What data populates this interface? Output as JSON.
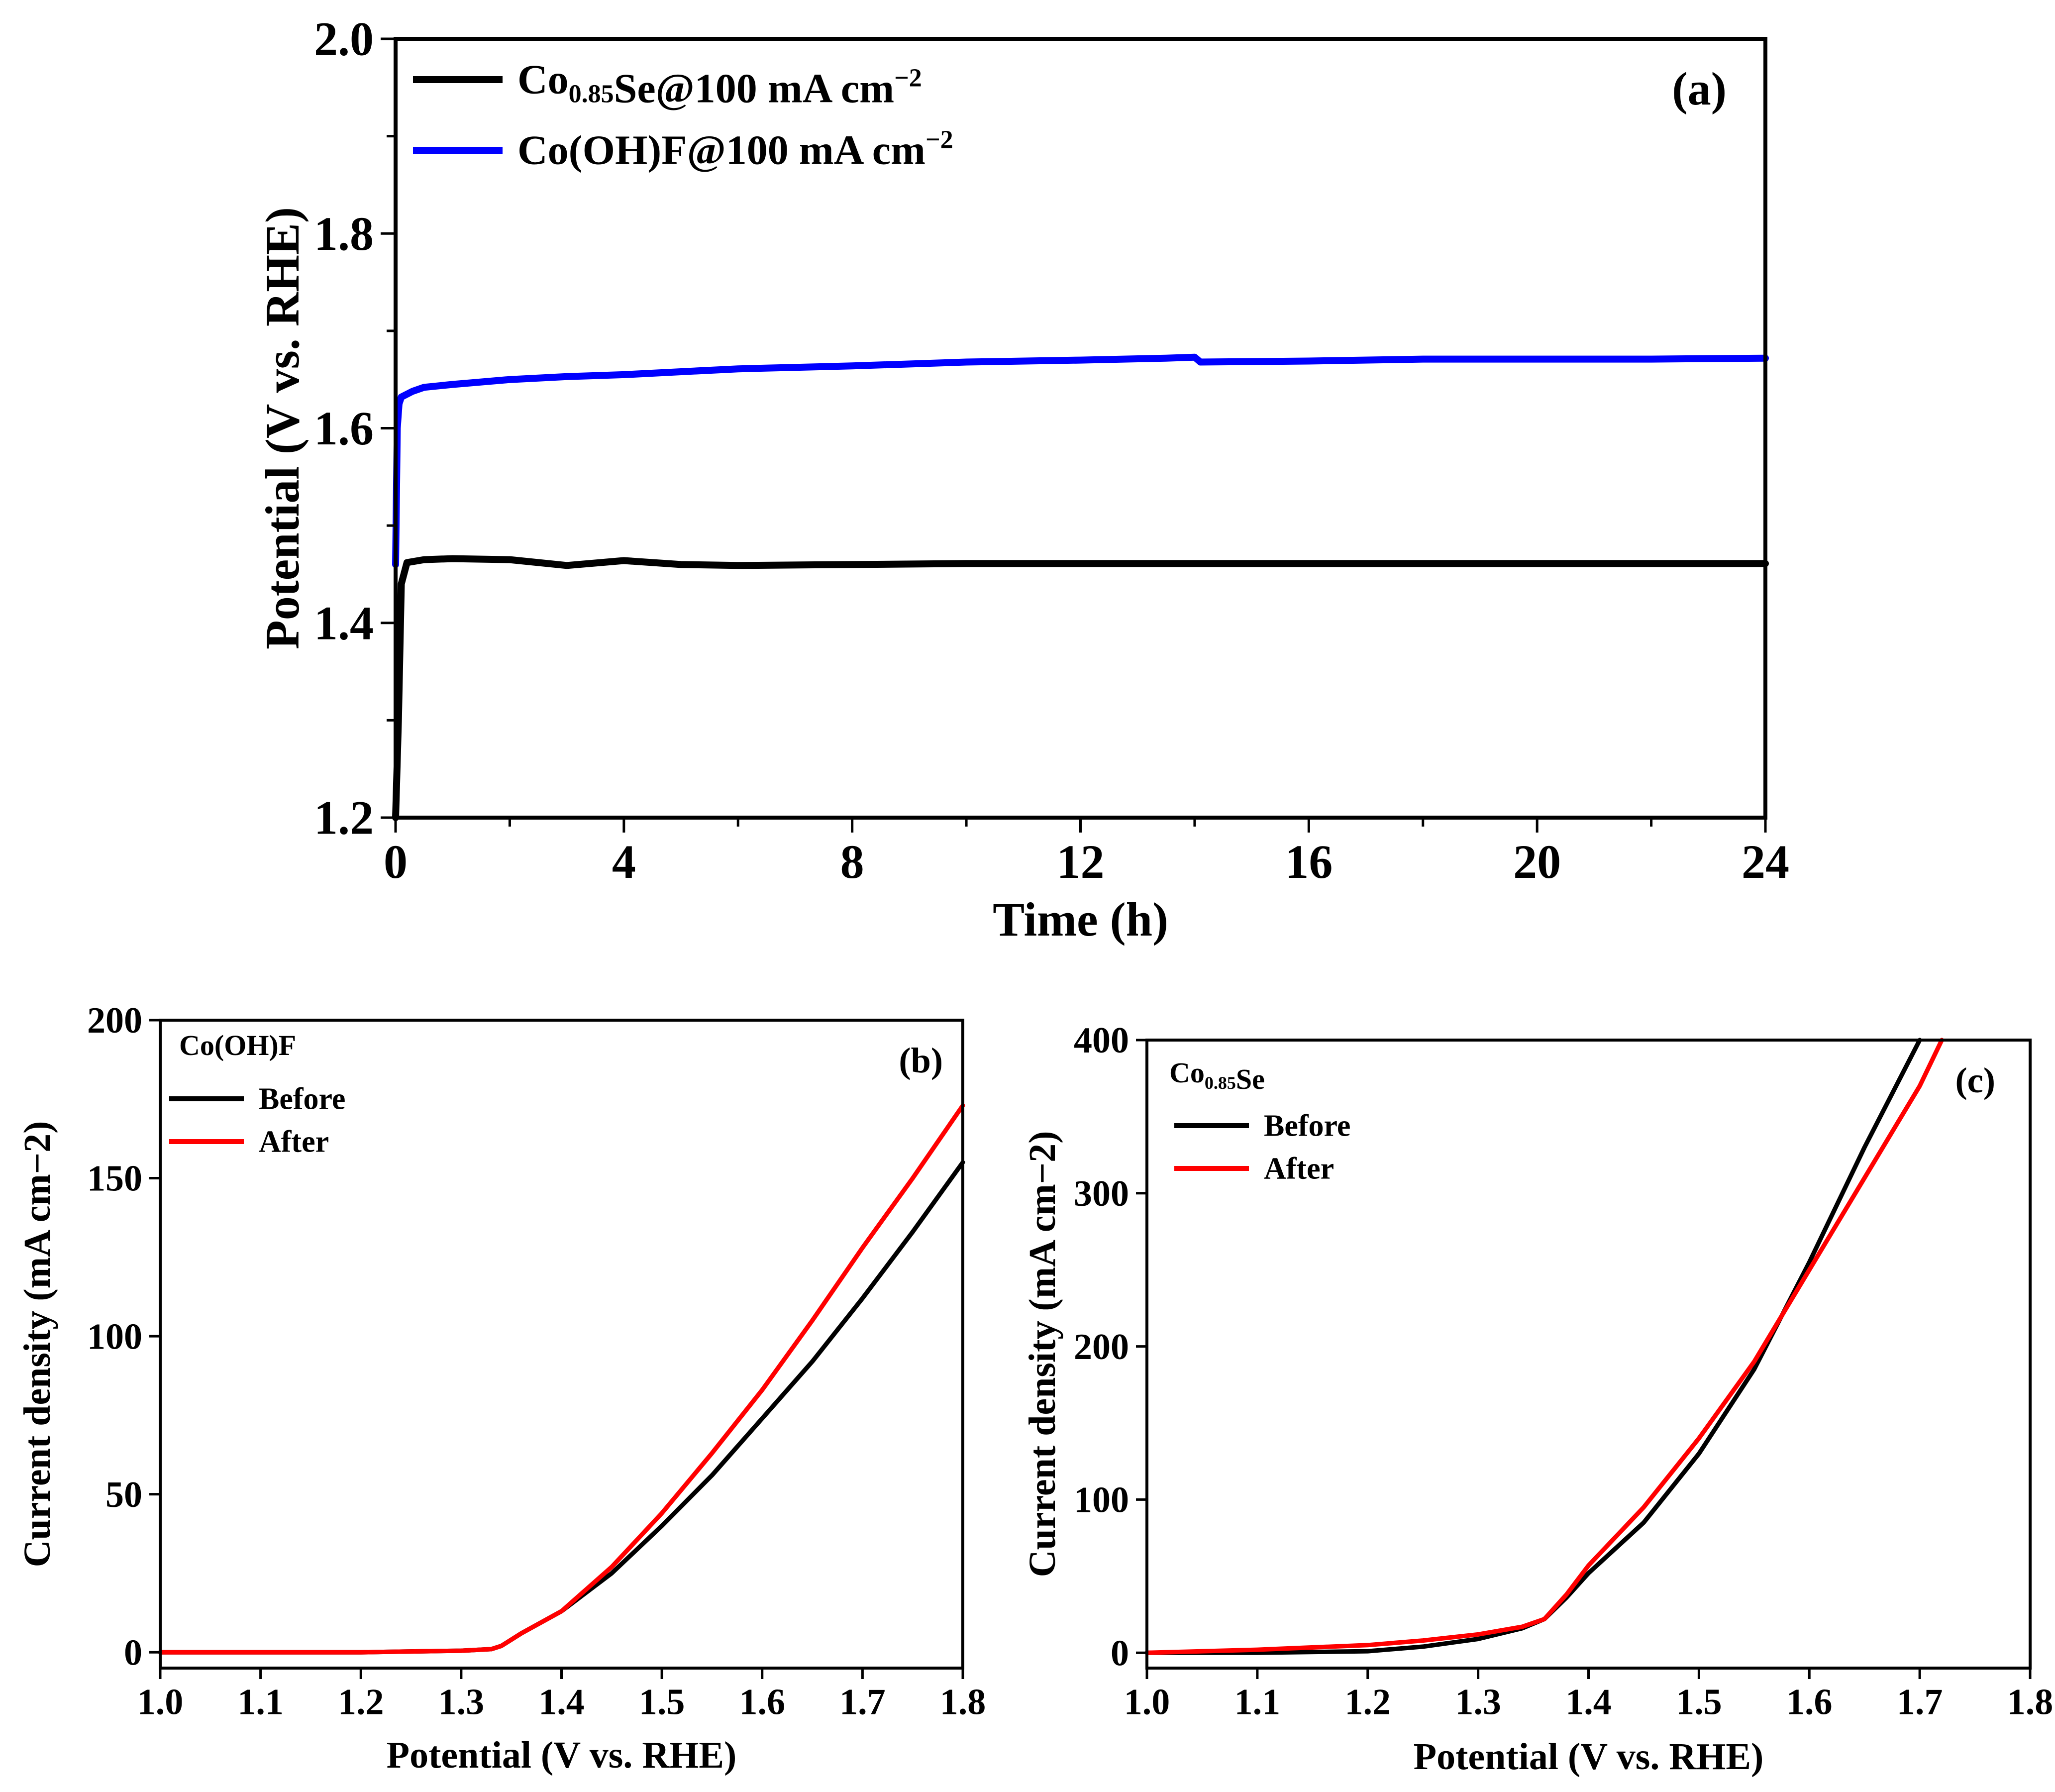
{
  "chart_data": [
    {
      "type": "line",
      "panel_label": "(a)",
      "xlabel": "Time (h)",
      "ylabel": "Potential (V vs. RHE)",
      "xlim": [
        0,
        24
      ],
      "ylim": [
        1.2,
        2.0
      ],
      "xticks": [
        "0",
        "4",
        "8",
        "12",
        "16",
        "20",
        "24"
      ],
      "yticks": [
        "1.2",
        "1.4",
        "1.6",
        "1.8",
        "2.0"
      ],
      "grid": false,
      "legend_position": "top-left",
      "series": [
        {
          "name": "Co0.85Se@100 mA cm−2",
          "color": "#000000",
          "x": [
            0,
            0.05,
            0.1,
            0.2,
            0.5,
            1,
            2,
            3,
            4,
            5,
            6,
            8,
            10,
            12,
            14,
            16,
            18,
            20,
            22,
            24
          ],
          "y": [
            1.2,
            1.3,
            1.44,
            1.462,
            1.465,
            1.466,
            1.465,
            1.459,
            1.464,
            1.46,
            1.459,
            1.46,
            1.461,
            1.461,
            1.461,
            1.461,
            1.461,
            1.461,
            1.461,
            1.461
          ]
        },
        {
          "name": "Co(OH)F@100 mA cm−2",
          "color": "#0000ff",
          "x": [
            0,
            0.03,
            0.06,
            0.1,
            0.3,
            0.5,
            1,
            2,
            3,
            4,
            5,
            6,
            8,
            10,
            12,
            13.5,
            14,
            14.1,
            16,
            18,
            20,
            22,
            24
          ],
          "y": [
            1.46,
            1.6,
            1.625,
            1.632,
            1.638,
            1.642,
            1.645,
            1.65,
            1.653,
            1.655,
            1.658,
            1.661,
            1.664,
            1.668,
            1.67,
            1.672,
            1.673,
            1.668,
            1.669,
            1.671,
            1.671,
            1.671,
            1.672
          ]
        }
      ]
    },
    {
      "type": "line",
      "panel_label": "(b)",
      "sample": "Co(OH)F",
      "xlabel": "Potential (V vs. RHE)",
      "ylabel": "Current density (mA cm−2)",
      "xlim": [
        1.0,
        1.8
      ],
      "ylim": [
        -5,
        200
      ],
      "xticks": [
        "1.0",
        "1.1",
        "1.2",
        "1.3",
        "1.4",
        "1.5",
        "1.6",
        "1.7",
        "1.8"
      ],
      "yticks": [
        "0",
        "50",
        "100",
        "150",
        "200"
      ],
      "grid": false,
      "legend_position": "top-left",
      "series": [
        {
          "name": "Before",
          "color": "#000000",
          "x": [
            1.0,
            1.1,
            1.2,
            1.3,
            1.33,
            1.34,
            1.35,
            1.36,
            1.4,
            1.45,
            1.5,
            1.55,
            1.6,
            1.65,
            1.7,
            1.75,
            1.8
          ],
          "y": [
            0,
            0,
            0,
            0.5,
            1,
            2,
            4,
            6,
            13,
            25,
            40,
            56,
            74,
            92,
            112,
            133,
            155
          ]
        },
        {
          "name": "After",
          "color": "#ff0000",
          "x": [
            1.0,
            1.1,
            1.2,
            1.3,
            1.33,
            1.34,
            1.35,
            1.36,
            1.4,
            1.45,
            1.5,
            1.55,
            1.6,
            1.65,
            1.7,
            1.75,
            1.8
          ],
          "y": [
            0,
            0,
            0,
            0.5,
            1,
            2,
            4,
            6,
            13,
            27,
            44,
            63,
            83,
            105,
            128,
            150,
            173
          ]
        }
      ]
    },
    {
      "type": "line",
      "panel_label": "(c)",
      "sample": "Co0.85Se",
      "xlabel": "Potential (V vs. RHE)",
      "ylabel": "Current density (mA cm−2)",
      "xlim": [
        1.0,
        1.8
      ],
      "ylim": [
        -10,
        400
      ],
      "xticks": [
        "1.0",
        "1.1",
        "1.2",
        "1.3",
        "1.4",
        "1.5",
        "1.6",
        "1.7",
        "1.8"
      ],
      "yticks": [
        "0",
        "100",
        "200",
        "300",
        "400"
      ],
      "grid": false,
      "legend_position": "top-left",
      "series": [
        {
          "name": "Before",
          "color": "#000000",
          "x": [
            1.0,
            1.1,
            1.2,
            1.25,
            1.3,
            1.34,
            1.36,
            1.38,
            1.4,
            1.45,
            1.5,
            1.55,
            1.6,
            1.65,
            1.7
          ],
          "y": [
            0,
            0,
            1,
            4,
            9,
            16,
            22,
            36,
            52,
            85,
            130,
            185,
            255,
            330,
            400
          ]
        },
        {
          "name": "After",
          "color": "#ff0000",
          "x": [
            1.0,
            1.1,
            1.2,
            1.25,
            1.3,
            1.34,
            1.36,
            1.38,
            1.4,
            1.45,
            1.5,
            1.55,
            1.6,
            1.65,
            1.7,
            1.72
          ],
          "y": [
            0,
            2,
            5,
            8,
            12,
            17,
            22,
            38,
            57,
            95,
            140,
            190,
            250,
            310,
            370,
            400
          ]
        }
      ]
    }
  ]
}
